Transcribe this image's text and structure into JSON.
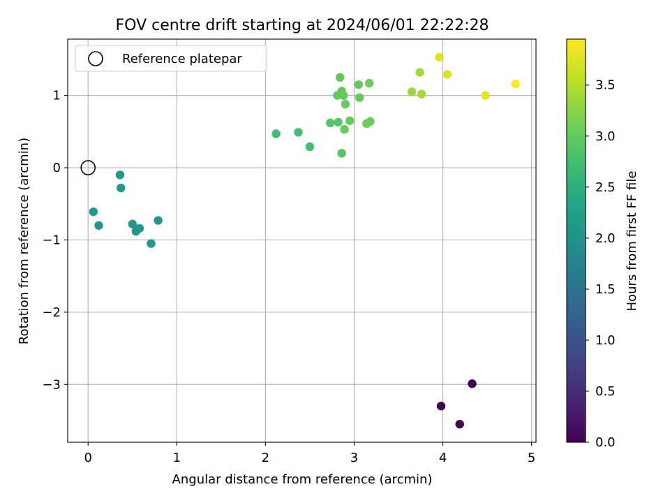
{
  "chart_data": {
    "type": "scatter",
    "title": "FOV centre drift starting at 2024/06/01 22:22:28",
    "xlabel": "Angular distance from reference (arcmin)",
    "ylabel": "Rotation from reference (arcmin)",
    "xlim": [
      -0.23,
      5.05
    ],
    "ylim": [
      -3.8,
      1.78
    ],
    "xticks": [
      0,
      1,
      2,
      3,
      4,
      5
    ],
    "yticks": [
      -3,
      -2,
      -1,
      0,
      1
    ],
    "xtick_labels": [
      "0",
      "1",
      "2",
      "3",
      "4",
      "5"
    ],
    "ytick_labels": [
      "−3",
      "−2",
      "−1",
      "0",
      "1"
    ],
    "grid": true,
    "legend": {
      "placement": "upper-left",
      "entries": [
        {
          "label": "Reference platepar",
          "marker": "hollow-circle"
        }
      ]
    },
    "reference_point": {
      "x": 0,
      "y": 0
    },
    "colorbar": {
      "label": "Hours from first FF file",
      "colormap": "viridis",
      "range": [
        0.0,
        3.95
      ],
      "ticks": [
        0.0,
        0.5,
        1.0,
        1.5,
        2.0,
        2.5,
        3.0,
        3.5
      ],
      "tick_labels": [
        "0.0",
        "0.5",
        "1.0",
        "1.5",
        "2.0",
        "2.5",
        "3.0",
        "3.5"
      ]
    },
    "points": [
      {
        "x": 3.98,
        "y": -3.3,
        "c": 0.0
      },
      {
        "x": 4.19,
        "y": -3.55,
        "c": 0.0
      },
      {
        "x": 4.33,
        "y": -2.99,
        "c": 0.0
      },
      {
        "x": 0.36,
        "y": -0.1,
        "c": 2.1
      },
      {
        "x": 0.37,
        "y": -0.28,
        "c": 2.1
      },
      {
        "x": 0.06,
        "y": -0.61,
        "c": 2.1
      },
      {
        "x": 0.12,
        "y": -0.8,
        "c": 2.1
      },
      {
        "x": 0.5,
        "y": -0.78,
        "c": 2.1
      },
      {
        "x": 0.54,
        "y": -0.88,
        "c": 2.1
      },
      {
        "x": 0.58,
        "y": -0.84,
        "c": 2.1
      },
      {
        "x": 0.71,
        "y": -1.05,
        "c": 2.1
      },
      {
        "x": 0.79,
        "y": -0.73,
        "c": 2.1
      },
      {
        "x": 2.12,
        "y": 0.47,
        "c": 2.75
      },
      {
        "x": 2.37,
        "y": 0.49,
        "c": 2.75
      },
      {
        "x": 2.5,
        "y": 0.29,
        "c": 2.75
      },
      {
        "x": 2.73,
        "y": 0.62,
        "c": 2.9
      },
      {
        "x": 2.82,
        "y": 0.63,
        "c": 2.9
      },
      {
        "x": 2.86,
        "y": 0.2,
        "c": 2.9
      },
      {
        "x": 2.84,
        "y": 1.25,
        "c": 3.0
      },
      {
        "x": 2.81,
        "y": 1.0,
        "c": 3.0
      },
      {
        "x": 2.86,
        "y": 1.06,
        "c": 3.0
      },
      {
        "x": 2.88,
        "y": 1.0,
        "c": 3.0
      },
      {
        "x": 2.9,
        "y": 0.88,
        "c": 3.0
      },
      {
        "x": 2.89,
        "y": 0.53,
        "c": 3.0
      },
      {
        "x": 2.95,
        "y": 0.65,
        "c": 3.0
      },
      {
        "x": 3.05,
        "y": 1.15,
        "c": 3.0
      },
      {
        "x": 3.06,
        "y": 0.97,
        "c": 3.0
      },
      {
        "x": 3.17,
        "y": 1.17,
        "c": 3.05
      },
      {
        "x": 3.14,
        "y": 0.61,
        "c": 3.05
      },
      {
        "x": 3.18,
        "y": 0.64,
        "c": 3.05
      },
      {
        "x": 3.65,
        "y": 1.05,
        "c": 3.35
      },
      {
        "x": 3.74,
        "y": 1.32,
        "c": 3.4
      },
      {
        "x": 3.76,
        "y": 1.02,
        "c": 3.4
      },
      {
        "x": 3.96,
        "y": 1.53,
        "c": 3.75
      },
      {
        "x": 4.05,
        "y": 1.29,
        "c": 3.75
      },
      {
        "x": 4.48,
        "y": 1.0,
        "c": 3.8
      },
      {
        "x": 4.82,
        "y": 1.16,
        "c": 3.95
      }
    ]
  }
}
